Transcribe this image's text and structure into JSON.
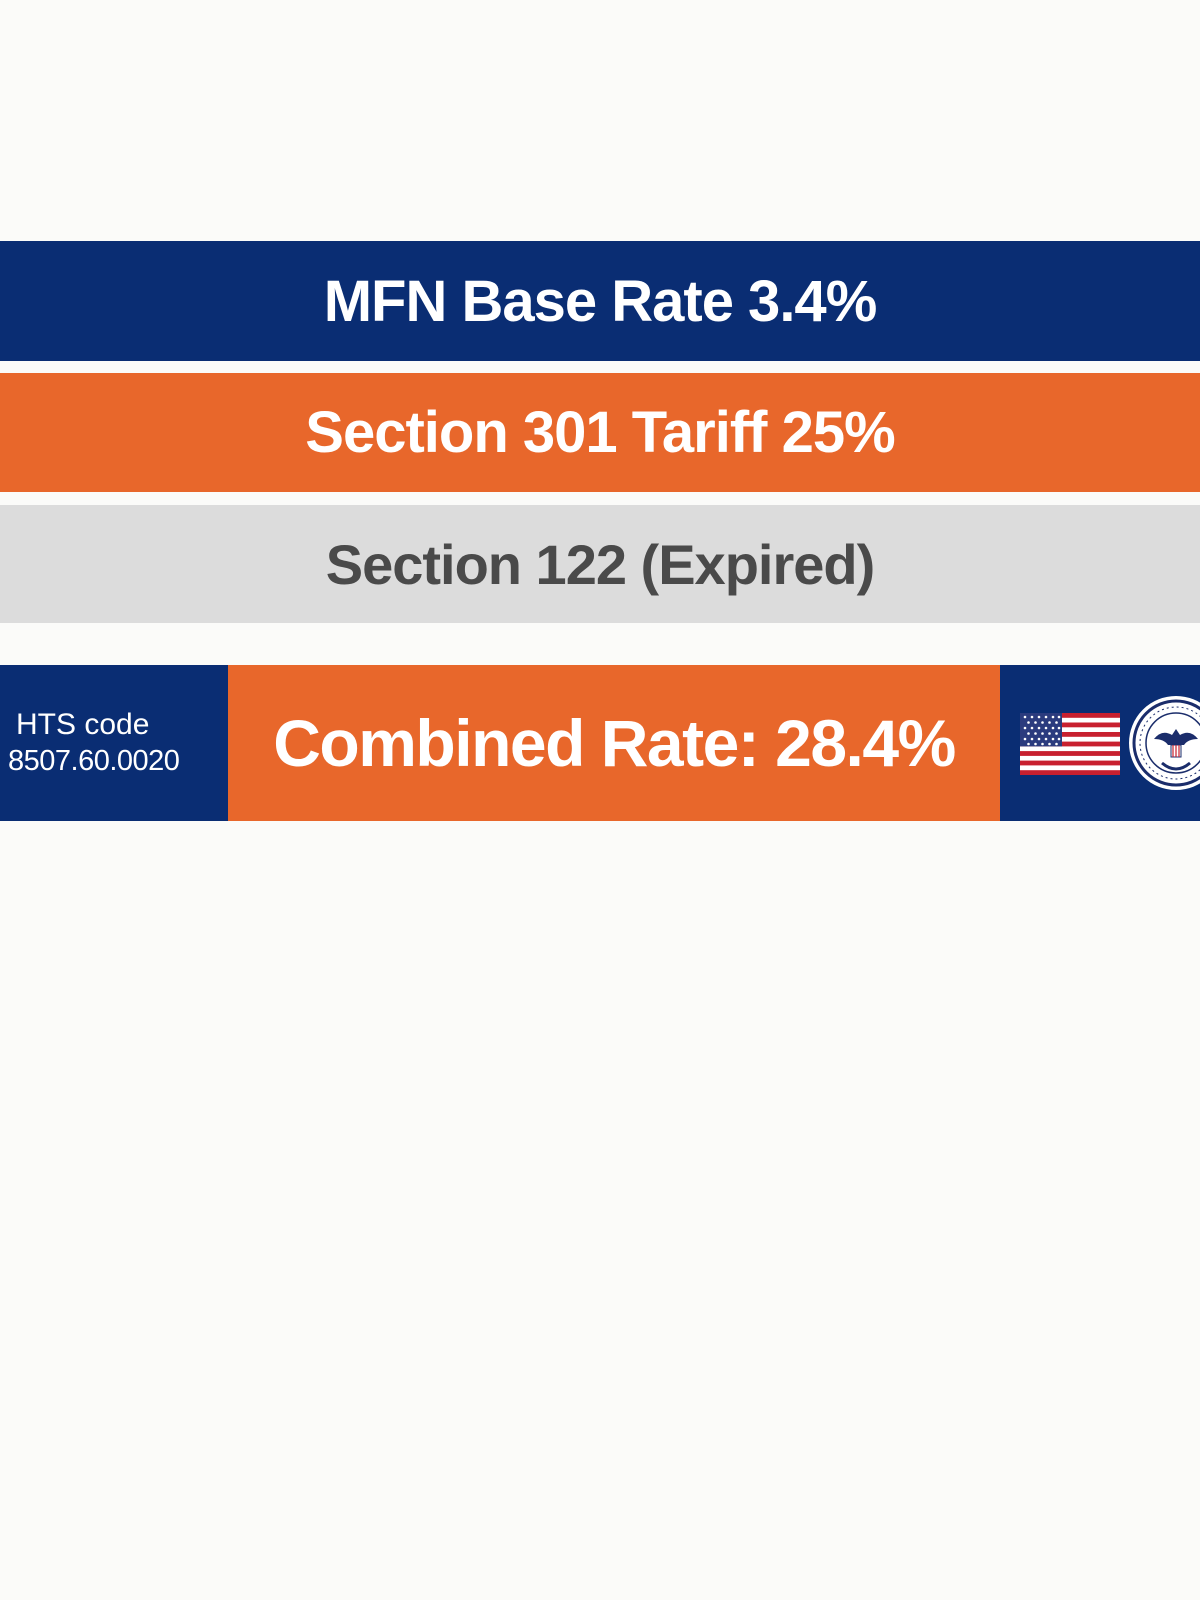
{
  "bands": {
    "mfn": "MFN Base Rate 3.4%",
    "section_301": "Section 301 Tariff 25%",
    "section_122": "Section 122 (Expired)"
  },
  "combined": {
    "hts_label": "HTS code",
    "hts_code": "8507.60.0020",
    "rate_text": "Combined Rate: 28.4%"
  },
  "icons": {
    "flag": "us-flag-icon",
    "seal": "government-seal-icon"
  },
  "colors": {
    "navy": "#0a2d73",
    "orange": "#e8672b",
    "gray": "#dcdcdc"
  }
}
